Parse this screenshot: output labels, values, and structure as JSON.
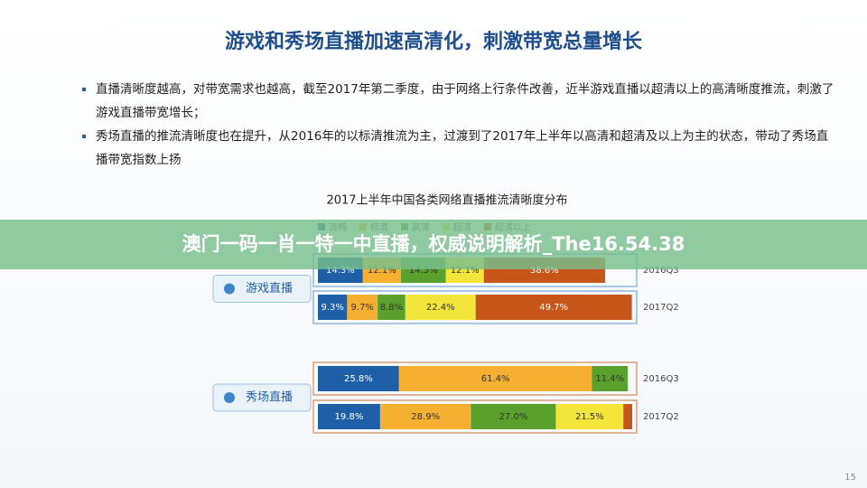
{
  "slide_title": "游戏和秀场直播加速高清化，刺激带宽总量增长",
  "bullets": [
    "直播清晰度越高，对带宽需求也越高，截至2017年第二季度，由于网络上行条件改善，近半游戏直播以超清以上的高清晰度推流，刺激了游戏直播带宽增长；",
    "秀场直播的推流清晰度也在提升，从2016年的以标清推流为主，过渡到了2017年上半年以高清和超清及以上为主的状态，带动了秀场直播带宽指数上扬"
  ],
  "banner": "澳门一码一肖一特一中直播，权威说明解析_The16.54.38",
  "page_number": "15",
  "chart_data": {
    "type": "stacked-bar-horizontal",
    "title": "2017上半年中国各类网络直播推流清晰度分布",
    "group_labels": [
      "游戏直播",
      "秀场直播"
    ],
    "categories": [
      "2016Q3",
      "2017Q2",
      "2016Q3",
      "2017Q2"
    ],
    "xlim": [
      0,
      100
    ],
    "legend": "top",
    "series": [
      {
        "name": "流畅",
        "color": "#1f5fa8",
        "values": [
          14.3,
          9.3,
          25.8,
          19.8
        ],
        "value_labels": [
          "14.3%",
          "9.3%",
          "25.8%",
          "19.8%"
        ]
      },
      {
        "name": "标清",
        "color": "#f5b031",
        "values": [
          12.1,
          9.7,
          61.4,
          28.9
        ],
        "value_labels": [
          "12.1%",
          "9.7%",
          "61.4%",
          "28.9%"
        ]
      },
      {
        "name": "高清",
        "color": "#5aa02c",
        "values": [
          14.3,
          8.8,
          11.4,
          27.0
        ],
        "value_labels": [
          "14.3%",
          "8.8%",
          "11.4%",
          "27.0%"
        ]
      },
      {
        "name": "超清",
        "color": "#f3e53a",
        "values": [
          12.1,
          22.4,
          null,
          21.5
        ],
        "value_labels": [
          "12.1%",
          "22.4%",
          null,
          "21.5%"
        ]
      },
      {
        "name": "超清以上",
        "color": "#c8561b",
        "values": [
          38.6,
          49.7,
          null,
          2.8
        ],
        "value_labels": [
          "38.6%",
          "49.7%",
          null,
          null
        ]
      }
    ]
  }
}
